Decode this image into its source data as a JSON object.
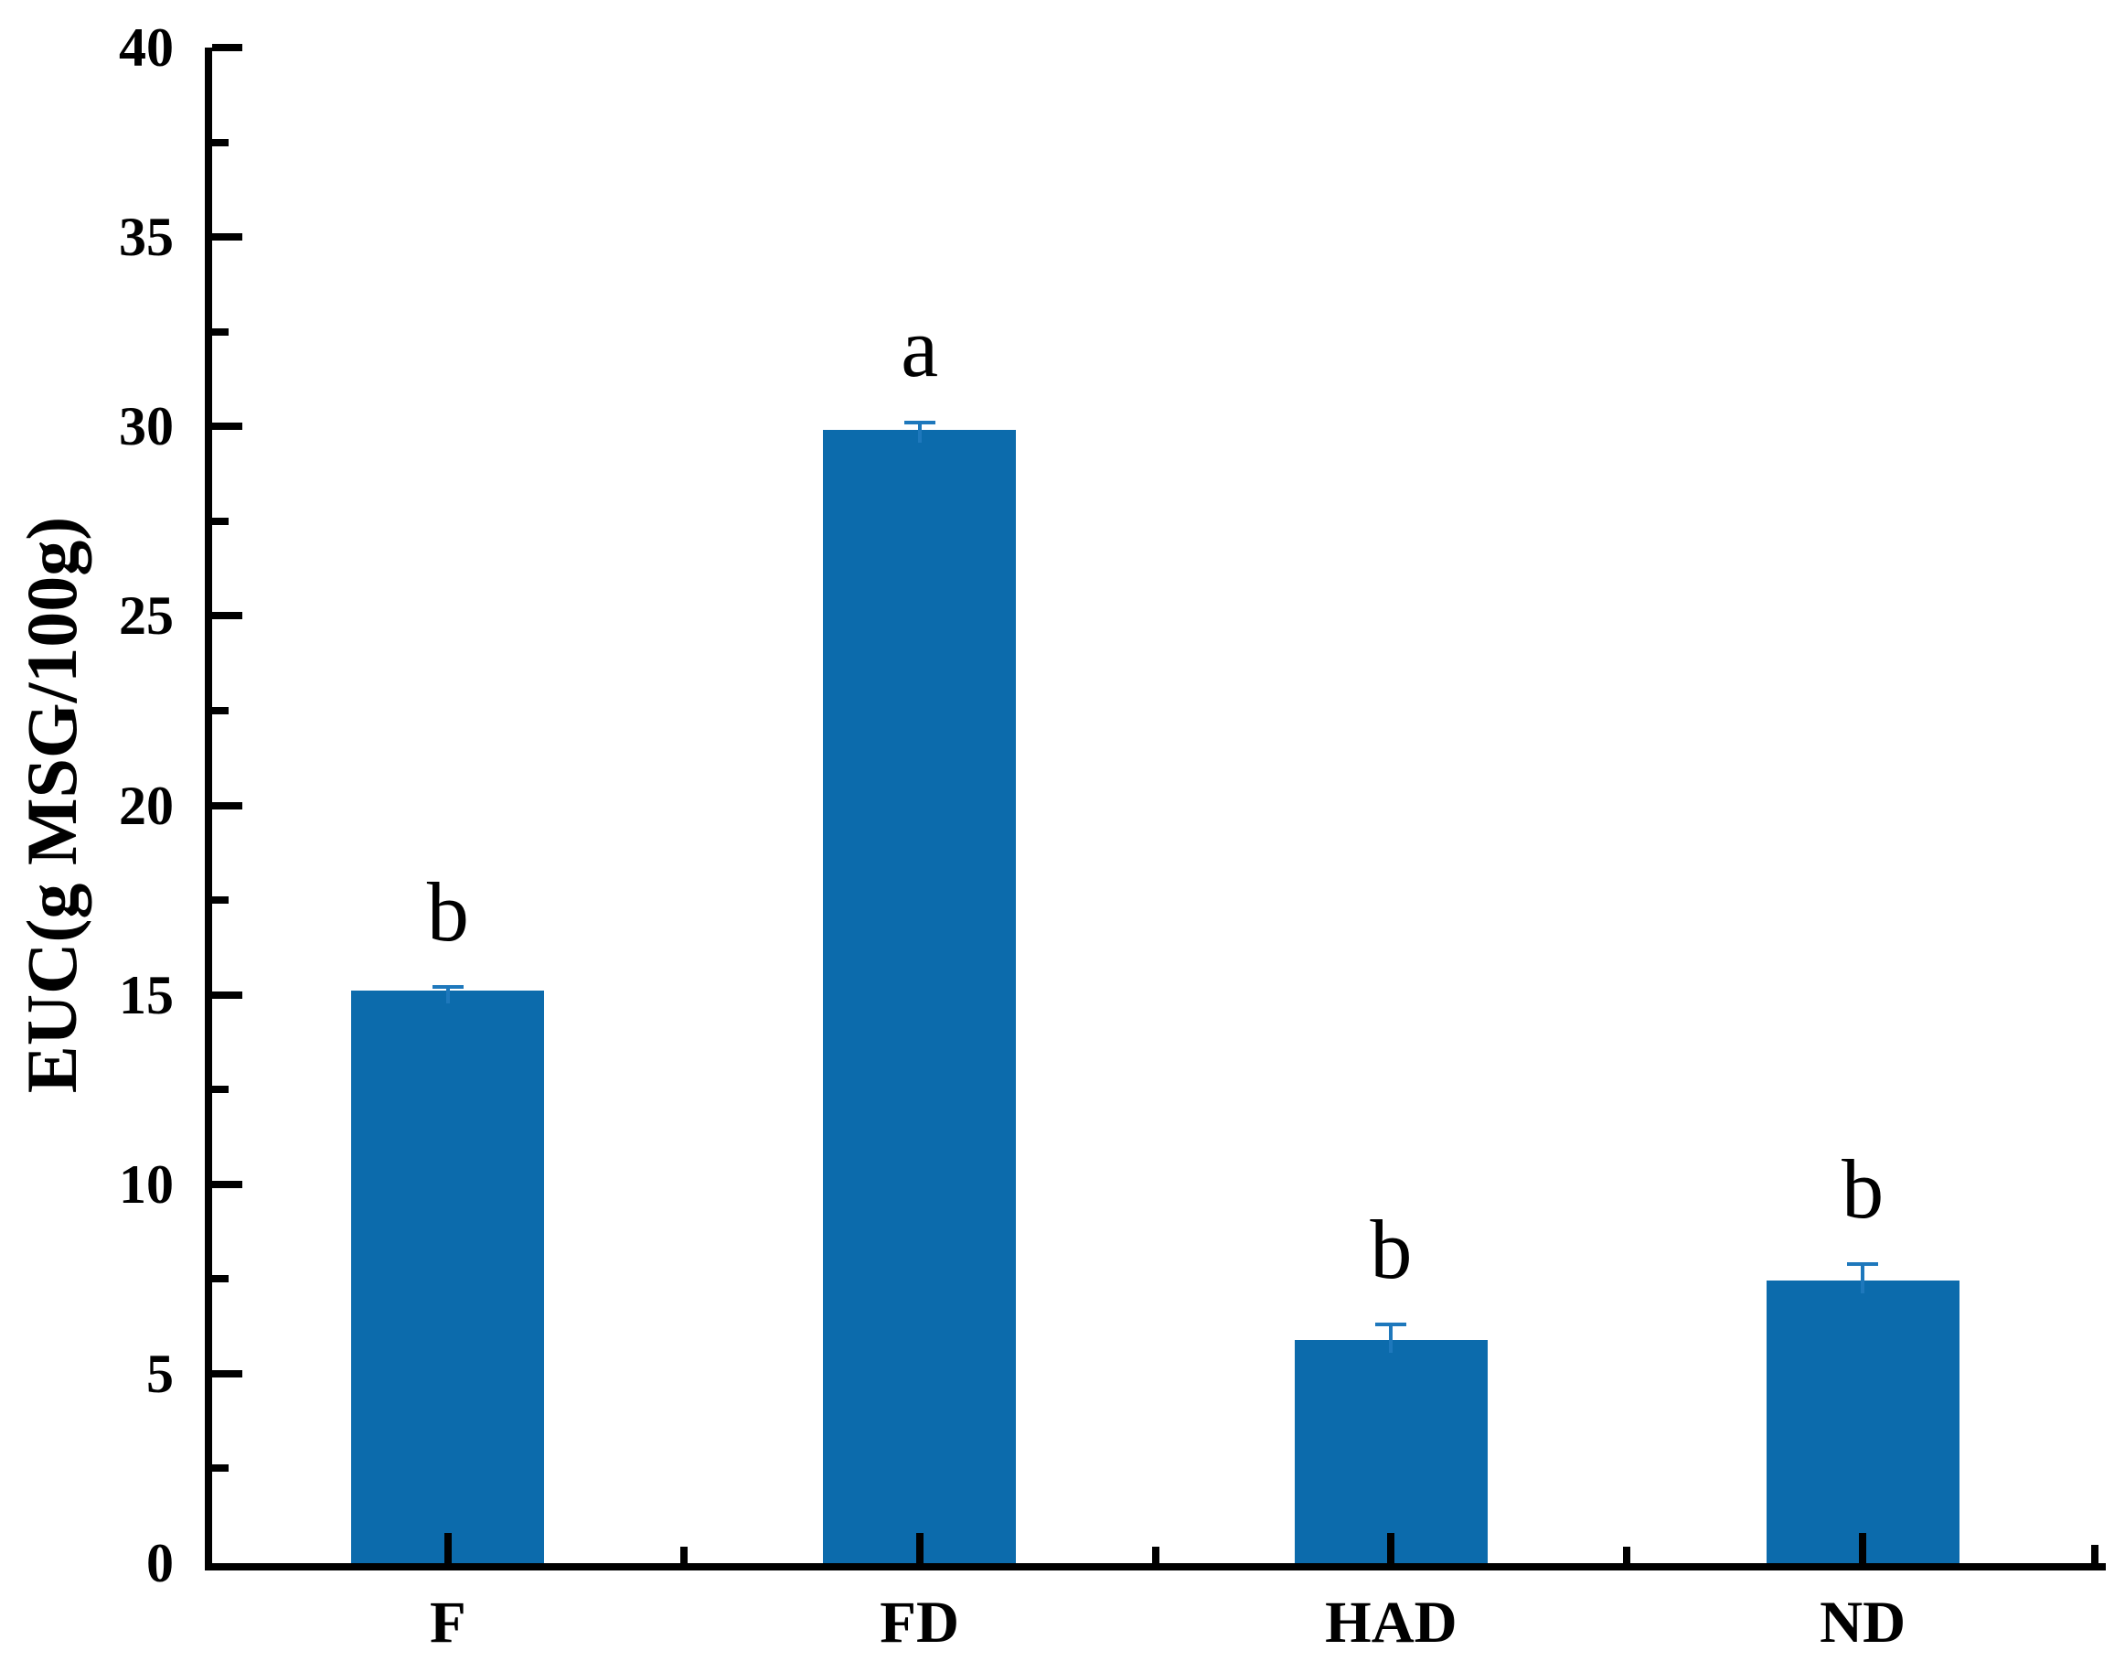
{
  "chart_data": {
    "type": "bar",
    "title": "",
    "categories": [
      "F",
      "FD",
      "HAD",
      "ND"
    ],
    "values": [
      15.1,
      29.9,
      5.9,
      7.45
    ],
    "errors": [
      0.1,
      0.2,
      0.4,
      0.45
    ],
    "significance_letters": [
      "b",
      "a",
      "b",
      "b"
    ],
    "xlabel": "",
    "ylabel": "EUC(g MSG/100g)",
    "ylim": [
      0,
      40
    ],
    "ytick_step": 5,
    "yminor_step": 2.5,
    "ytick_labels": [
      "0",
      "5",
      "10",
      "15",
      "20",
      "25",
      "30",
      "35",
      "40"
    ],
    "grid": "off",
    "legend": "none",
    "bar_color": "#0C6BAC",
    "error_bar_color": "#1E78BC",
    "axis_color": "#000000",
    "background_color": "#FFFFFF"
  }
}
